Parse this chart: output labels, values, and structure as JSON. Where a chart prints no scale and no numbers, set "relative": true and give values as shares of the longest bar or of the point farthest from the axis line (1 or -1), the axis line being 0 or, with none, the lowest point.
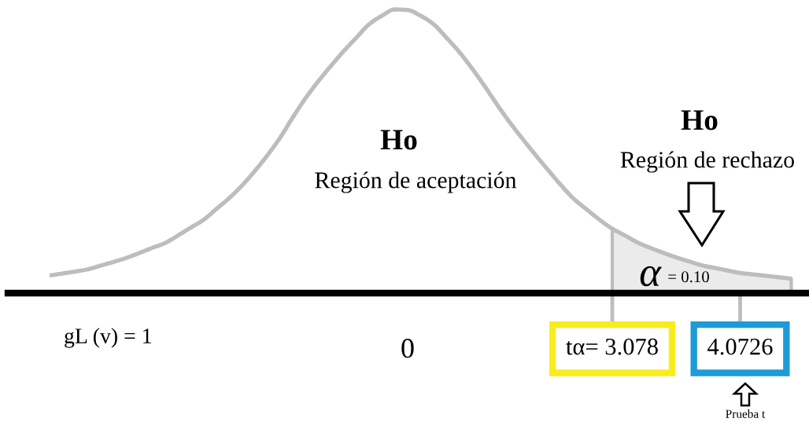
{
  "chart_data": {
    "type": "line",
    "relative": true,
    "line_style": "solid",
    "categories": [
      null,
      null,
      null,
      null,
      null,
      null,
      null,
      null,
      null,
      null,
      null,
      null,
      null,
      null,
      null,
      null,
      null,
      null,
      null,
      null,
      null,
      null,
      null,
      null,
      null,
      null,
      null,
      null,
      "0",
      null,
      null,
      null,
      null,
      null,
      null,
      null,
      null,
      null,
      null,
      null,
      null,
      null,
      null,
      null,
      "tα= 3.078",
      null,
      null,
      null,
      null,
      null,
      null,
      null,
      null,
      null,
      "4.0726",
      null,
      null,
      null,
      null
    ],
    "series": [
      {
        "color": "#bdbdbd",
        "values": [
          0.062,
          0.069,
          0.076,
          0.084,
          0.097,
          0.11,
          0.124,
          0.141,
          0.159,
          0.176,
          0.202,
          0.23,
          0.257,
          0.295,
          0.333,
          0.377,
          0.428,
          0.484,
          0.546,
          0.618,
          0.686,
          0.746,
          0.801,
          0.853,
          0.901,
          0.948,
          0.978,
          1.0,
          0.998,
          0.978,
          0.949,
          0.902,
          0.852,
          0.794,
          0.731,
          0.664,
          0.601,
          0.543,
          0.487,
          0.433,
          0.38,
          0.332,
          0.295,
          0.259,
          0.227,
          0.203,
          0.178,
          0.159,
          0.142,
          0.126,
          0.112,
          0.098,
          0.089,
          0.08,
          0.071,
          0.066,
          0.061,
          0.056,
          0.051
        ]
      },
      {
        "type": "area",
        "color": "#ebebeb",
        "values": [
          null,
          null,
          null,
          null,
          null,
          null,
          null,
          null,
          null,
          null,
          null,
          null,
          null,
          null,
          null,
          null,
          null,
          null,
          null,
          null,
          null,
          null,
          null,
          null,
          null,
          null,
          null,
          null,
          null,
          null,
          null,
          null,
          null,
          null,
          null,
          null,
          null,
          null,
          null,
          null,
          null,
          null,
          null,
          null,
          0.227,
          0.203,
          0.178,
          0.159,
          0.142,
          0.126,
          0.112,
          0.098,
          0.089,
          0.08,
          0.071,
          0.066,
          0.061,
          0.056,
          0.051
        ]
      }
    ],
    "annotations": [
      "Ho",
      "Región de aceptación",
      "Ho",
      "Región de rechazo",
      "α",
      "= 0.10",
      "gL (v) = 1",
      "Prueba t"
    ]
  }
}
